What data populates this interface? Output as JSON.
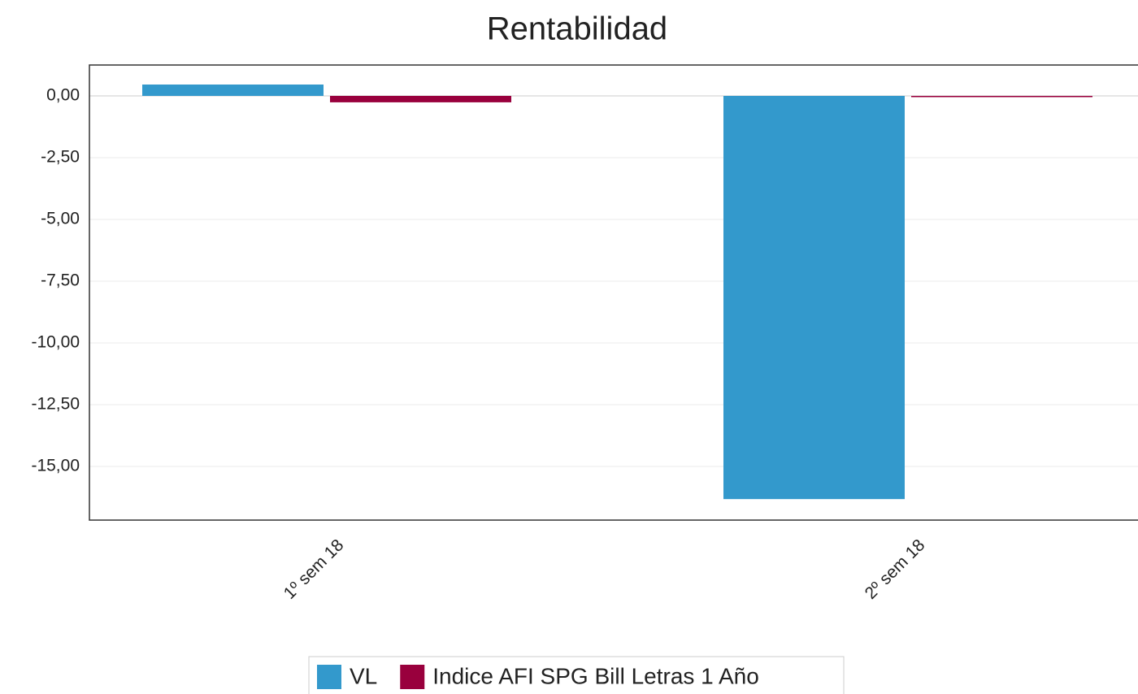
{
  "chart_data": {
    "type": "bar",
    "title": "Rentabilidad",
    "categories": [
      "1º sem  18",
      "2º sem  18"
    ],
    "series": [
      {
        "name": "VL",
        "color": "#3399cc",
        "values": [
          0.46,
          -16.32
        ]
      },
      {
        "name": "Indice AFI SPG Bill Letras 1 Año",
        "color": "#99003d",
        "values": [
          -0.26,
          -0.05
        ]
      }
    ],
    "ylim": [
      -17.17,
      1.25
    ],
    "yticks": [
      {
        "value": 0,
        "label": "0,00"
      },
      {
        "value": -2.5,
        "label": "-2,50"
      },
      {
        "value": -5,
        "label": "-5,00"
      },
      {
        "value": -7.5,
        "label": "-7,50"
      },
      {
        "value": -10,
        "label": "-10,00"
      },
      {
        "value": -12.5,
        "label": "-12,50"
      },
      {
        "value": -15,
        "label": "-15,00"
      }
    ],
    "grid": true
  }
}
